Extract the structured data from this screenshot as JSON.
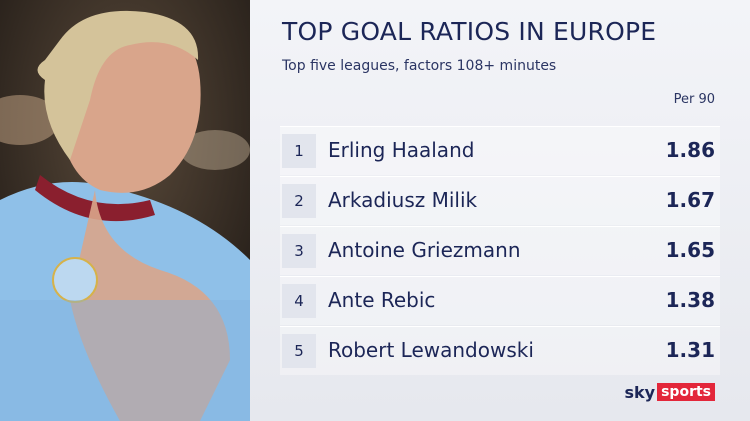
{
  "header": {
    "title": "TOP GOAL RATIOS IN EUROPE",
    "subtitle": "Top five leagues, factors 108+ minutes"
  },
  "table": {
    "column_header": "Per 90",
    "rows": [
      [
        1,
        "Erling Haaland",
        1.86
      ],
      [
        2,
        "Arkadiusz Milik",
        1.67
      ],
      [
        3,
        "Antoine Griezmann",
        1.65
      ],
      [
        4,
        "Ante Rebic",
        1.38
      ],
      [
        5,
        "Robert Lewandowski",
        1.31
      ]
    ]
  },
  "branding": {
    "brand": "sky",
    "channel": "sports"
  }
}
